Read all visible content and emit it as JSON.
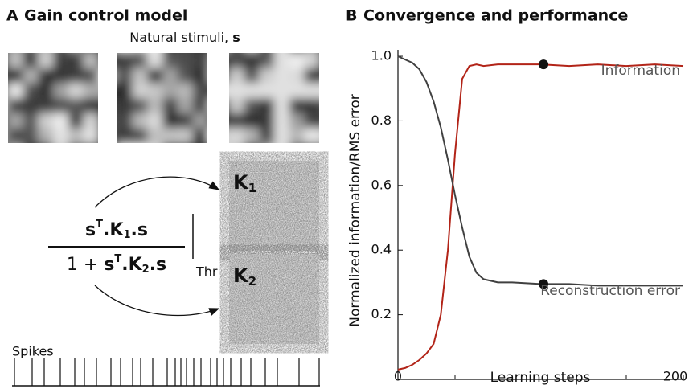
{
  "panel_a": {
    "label": "A",
    "title": "Gain control model",
    "stimuli_label": "Natural stimuli, ",
    "stimuli_symbol": "s",
    "formula": {
      "numerator": [
        "s",
        "T",
        ".K",
        "1",
        ".s"
      ],
      "denominator": [
        "1 + ",
        "s",
        "T",
        ".K",
        "2",
        ".s"
      ],
      "threshold": "Thr"
    },
    "kernels": [
      [
        "K",
        "1"
      ],
      [
        "K",
        "2"
      ]
    ],
    "spikes_label": "Spikes"
  },
  "chart_data": {
    "type": "line",
    "label": "B",
    "title": "Convergence and performance",
    "xlabel": "Learning steps",
    "ylabel": "Normalized information/RMS error",
    "xlim": [
      0,
      200
    ],
    "xticks": [
      0,
      {
        "value": 40,
        "label": null
      },
      {
        "value": 80,
        "label": null
      },
      {
        "value": 120,
        "label": null
      },
      {
        "value": 160,
        "label": null
      },
      200
    ],
    "ylim": [
      0,
      1.02
    ],
    "yticks": [
      0.2,
      0.4,
      0.6,
      0.8,
      {
        "value": 1,
        "label": "1.0"
      }
    ],
    "x": [
      0,
      5,
      10,
      15,
      20,
      25,
      30,
      35,
      40,
      45,
      50,
      55,
      60,
      70,
      80,
      100,
      120,
      140,
      160,
      180,
      200
    ],
    "series": [
      {
        "name": "Information",
        "color": "#b22418",
        "values": [
          0.03,
          0.035,
          0.045,
          0.06,
          0.08,
          0.11,
          0.2,
          0.4,
          0.7,
          0.93,
          0.97,
          0.975,
          0.97,
          0.975,
          0.975,
          0.975,
          0.97,
          0.975,
          0.97,
          0.975,
          0.97
        ],
        "marker": [
          102,
          0.975
        ]
      },
      {
        "name": "Reconstruction error",
        "color": "#404040",
        "values": [
          1.0,
          0.99,
          0.98,
          0.96,
          0.92,
          0.86,
          0.78,
          0.68,
          0.57,
          0.47,
          0.38,
          0.33,
          0.31,
          0.3,
          0.3,
          0.295,
          0.295,
          0.29,
          0.29,
          0.29,
          0.29
        ],
        "marker": [
          102,
          0.295
        ]
      }
    ]
  }
}
